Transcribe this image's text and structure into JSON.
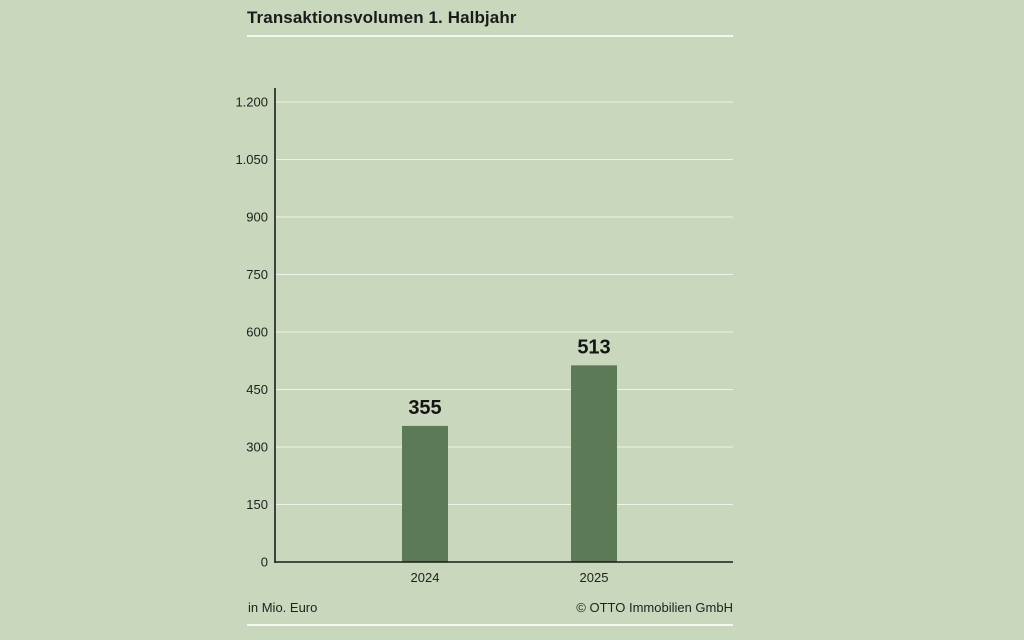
{
  "chart_data": {
    "type": "bar",
    "title": "Transaktionsvolumen 1. Halbjahr",
    "categories": [
      "2024",
      "2025"
    ],
    "values": [
      355,
      513
    ],
    "value_labels": [
      "355",
      "513"
    ],
    "yticks": [
      0,
      150,
      300,
      450,
      600,
      750,
      900,
      1050,
      1200
    ],
    "ytick_labels": [
      "0",
      "150",
      "300",
      "450",
      "600",
      "750",
      "900",
      "1.050",
      "1.200"
    ],
    "ylim": [
      0,
      1200
    ],
    "grid": true,
    "unit_note": "in Mio. Euro",
    "bar_color": "#5b7a55",
    "grid_color": "#eef2e8",
    "axis_color": "#1b1b1b"
  },
  "footer": {
    "unit": "in Mio. Euro",
    "source": "© OTTO Immobilien GmbH"
  },
  "colors": {
    "background": "#c9d8bc",
    "rule": "#f4f6ef"
  }
}
